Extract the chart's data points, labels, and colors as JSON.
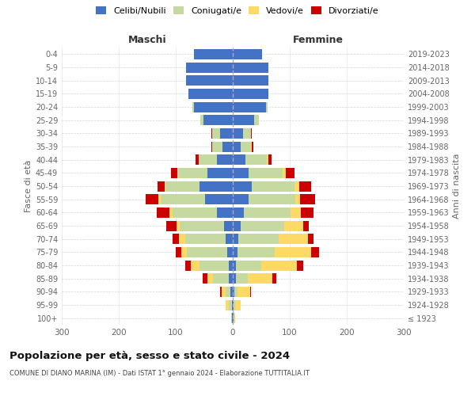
{
  "age_groups": [
    "100+",
    "95-99",
    "90-94",
    "85-89",
    "80-84",
    "75-79",
    "70-74",
    "65-69",
    "60-64",
    "55-59",
    "50-54",
    "45-49",
    "40-44",
    "35-39",
    "30-34",
    "25-29",
    "20-24",
    "15-19",
    "10-14",
    "5-9",
    "0-4"
  ],
  "birth_years": [
    "≤ 1923",
    "1924-1928",
    "1929-1933",
    "1934-1938",
    "1939-1943",
    "1944-1948",
    "1949-1953",
    "1954-1958",
    "1959-1963",
    "1964-1968",
    "1969-1973",
    "1974-1978",
    "1979-1983",
    "1984-1988",
    "1989-1993",
    "1994-1998",
    "1999-2003",
    "2004-2008",
    "2009-2013",
    "2014-2018",
    "2019-2023"
  ],
  "maschi": {
    "celibi": [
      2,
      2,
      4,
      7,
      7,
      10,
      12,
      15,
      28,
      48,
      58,
      45,
      28,
      18,
      22,
      52,
      68,
      78,
      82,
      82,
      68
    ],
    "coniugati": [
      1,
      5,
      8,
      28,
      52,
      70,
      72,
      78,
      78,
      78,
      60,
      52,
      32,
      18,
      14,
      5,
      3,
      0,
      0,
      0,
      0
    ],
    "vedovi": [
      0,
      5,
      8,
      10,
      15,
      10,
      10,
      5,
      5,
      5,
      2,
      0,
      0,
      0,
      0,
      0,
      0,
      0,
      0,
      0,
      0
    ],
    "divorziati": [
      0,
      0,
      2,
      8,
      10,
      10,
      12,
      18,
      22,
      22,
      12,
      12,
      5,
      2,
      2,
      0,
      0,
      0,
      0,
      0,
      0
    ]
  },
  "femmine": {
    "nubili": [
      2,
      2,
      3,
      5,
      5,
      8,
      10,
      14,
      20,
      28,
      33,
      28,
      22,
      14,
      18,
      38,
      58,
      62,
      62,
      62,
      52
    ],
    "coniugate": [
      1,
      2,
      5,
      22,
      45,
      65,
      70,
      76,
      82,
      82,
      76,
      60,
      38,
      18,
      14,
      8,
      3,
      0,
      0,
      0,
      0
    ],
    "vedove": [
      1,
      10,
      22,
      42,
      62,
      65,
      52,
      33,
      18,
      8,
      7,
      5,
      3,
      2,
      0,
      0,
      0,
      0,
      0,
      0,
      0
    ],
    "divorziate": [
      0,
      0,
      2,
      8,
      12,
      14,
      10,
      10,
      22,
      26,
      22,
      16,
      5,
      2,
      2,
      0,
      0,
      0,
      0,
      0,
      0
    ]
  },
  "colors": {
    "celibi": "#4472c4",
    "coniugati": "#c5d9a0",
    "vedovi": "#ffd966",
    "divorziati": "#cc0000"
  },
  "xlim": 300,
  "title": "Popolazione per età, sesso e stato civile - 2024",
  "subtitle": "COMUNE DI DIANO MARINA (IM) - Dati ISTAT 1° gennaio 2024 - Elaborazione TUTTITALIA.IT",
  "ylabel_left": "Fasce di età",
  "ylabel_right": "Anni di nascita",
  "header_left": "Maschi",
  "header_right": "Femmine",
  "legend_labels": [
    "Celibi/Nubili",
    "Coniugati/e",
    "Vedovi/e",
    "Divorziati/e"
  ],
  "bg_color": "#ffffff",
  "grid_color": "#cccccc"
}
